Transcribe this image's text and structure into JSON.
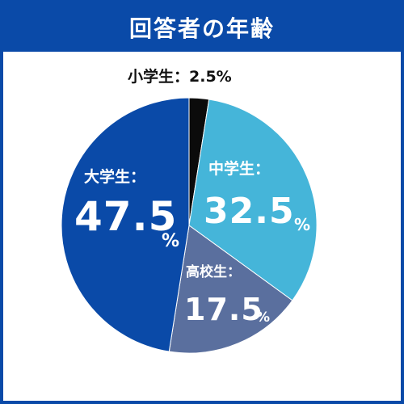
{
  "header": {
    "title": "回答者の年齢"
  },
  "colors": {
    "header_bg": "#0a4aa8",
    "elementary": "#0b0b0b",
    "junior_high": "#45b5d9",
    "high_school": "#5a6f9e",
    "university": "#0a4aa8"
  },
  "chart_data": {
    "type": "pie",
    "title": "回答者の年齢",
    "slices": [
      {
        "label": "小学生",
        "value": 2.5,
        "display": "小学生：2.5%",
        "color": "#0b0b0b"
      },
      {
        "label": "中学生",
        "value": 32.5,
        "display_label": "中学生：",
        "number": "32.5",
        "unit": "%",
        "color": "#45b5d9"
      },
      {
        "label": "高校生",
        "value": 17.5,
        "display_label": "高校生：",
        "number": "17.5",
        "unit": "%",
        "color": "#5a6f9e"
      },
      {
        "label": "大学生",
        "value": 47.5,
        "display_label": "大学生：",
        "number": "47.5",
        "unit": "%",
        "color": "#0a4aa8"
      }
    ]
  }
}
